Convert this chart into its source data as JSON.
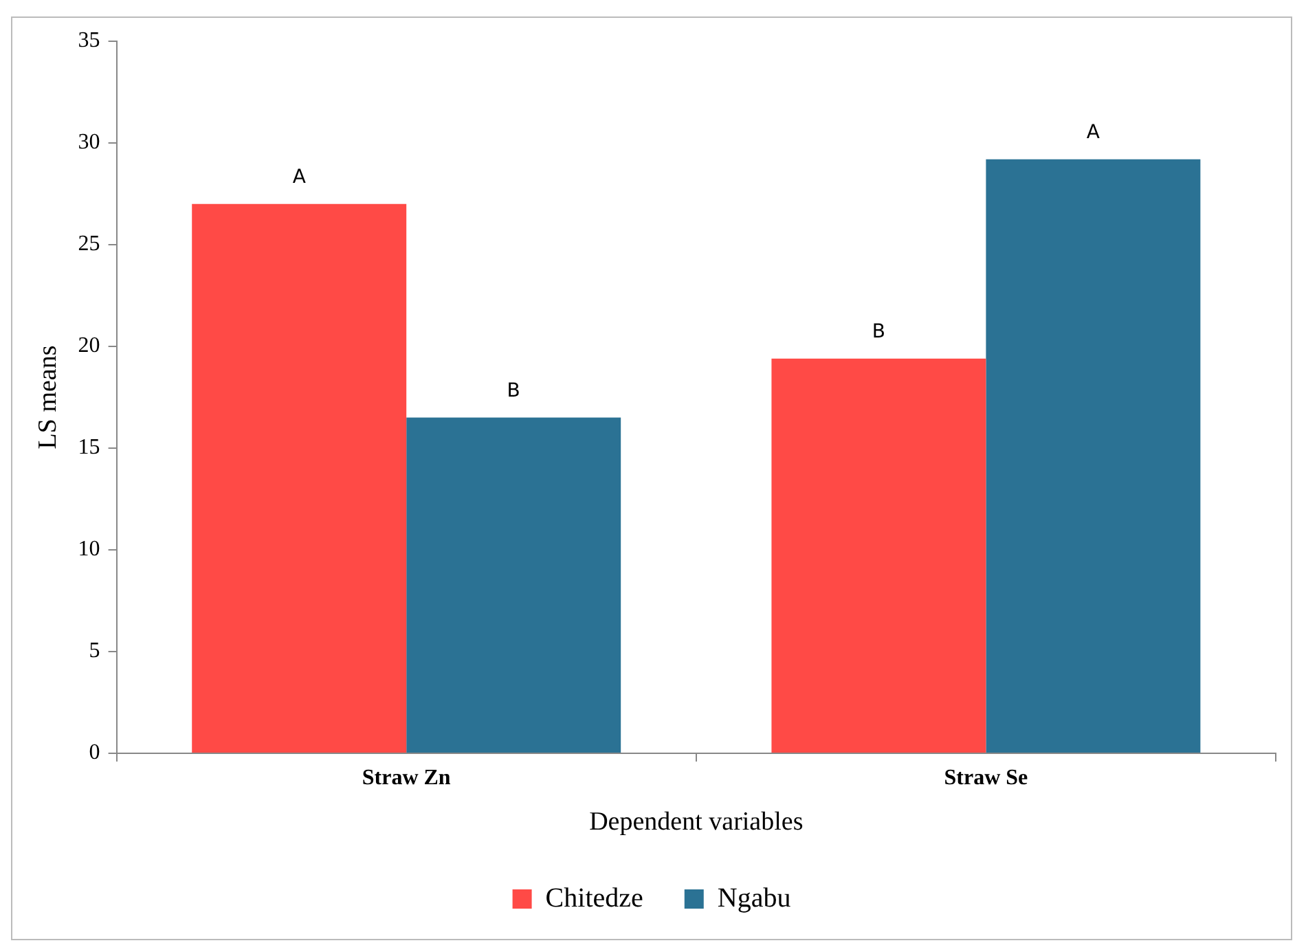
{
  "chart_data": {
    "type": "bar",
    "xlabel": "Dependent variables",
    "ylabel": "LS means",
    "categories": [
      "Straw Zn",
      "Straw Se"
    ],
    "series": [
      {
        "name": "Chitedze",
        "color": "#ff4a46",
        "values": [
          27.0,
          19.4
        ],
        "value_labels": [
          "A",
          "B"
        ]
      },
      {
        "name": "Ngabu",
        "color": "#2b7294",
        "values": [
          16.5,
          29.2
        ],
        "value_labels": [
          "B",
          "A"
        ]
      }
    ],
    "ylim": [
      0,
      35
    ],
    "yticks": [
      0,
      5,
      10,
      15,
      20,
      25,
      30,
      35
    ],
    "grid": false,
    "legend": "bottom"
  }
}
